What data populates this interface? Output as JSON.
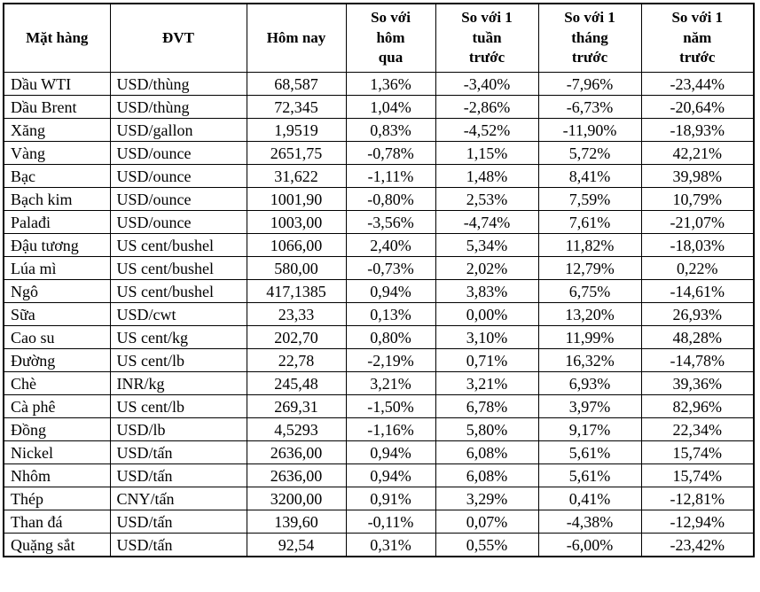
{
  "colors": {
    "border": "#000000",
    "background": "#ffffff",
    "text": "#000000"
  },
  "table": {
    "headers": [
      "Mặt hàng",
      "ĐVT",
      "Hôm nay",
      "So với\nhôm\nqua",
      "So với 1\ntuần\ntrước",
      "So với 1\ntháng\ntrước",
      "So với 1\nnăm\ntrước"
    ],
    "column_keys": [
      "commodity",
      "unit",
      "today",
      "vs-yesterday",
      "vs-week",
      "vs-month",
      "vs-year"
    ],
    "rows": [
      [
        "Dầu WTI",
        "USD/thùng",
        "68,587",
        "1,36%",
        "-3,40%",
        "-7,96%",
        "-23,44%"
      ],
      [
        "Dầu Brent",
        "USD/thùng",
        "72,345",
        "1,04%",
        "-2,86%",
        "-6,73%",
        "-20,64%"
      ],
      [
        "Xăng",
        "USD/gallon",
        "1,9519",
        "0,83%",
        "-4,52%",
        "-11,90%",
        "-18,93%"
      ],
      [
        "Vàng",
        "USD/ounce",
        "2651,75",
        "-0,78%",
        "1,15%",
        "5,72%",
        "42,21%"
      ],
      [
        "Bạc",
        "USD/ounce",
        "31,622",
        "-1,11%",
        "1,48%",
        "8,41%",
        "39,98%"
      ],
      [
        "Bạch kim",
        "USD/ounce",
        "1001,90",
        "-0,80%",
        "2,53%",
        "7,59%",
        "10,79%"
      ],
      [
        "Palađi",
        "USD/ounce",
        "1003,00",
        "-3,56%",
        "-4,74%",
        "7,61%",
        "-21,07%"
      ],
      [
        "Đậu tương",
        "US cent/bushel",
        "1066,00",
        "2,40%",
        "5,34%",
        "11,82%",
        "-18,03%"
      ],
      [
        "Lúa mì",
        "US cent/bushel",
        "580,00",
        "-0,73%",
        "2,02%",
        "12,79%",
        "0,22%"
      ],
      [
        "Ngô",
        "US cent/bushel",
        "417,1385",
        "0,94%",
        "3,83%",
        "6,75%",
        "-14,61%"
      ],
      [
        "Sữa",
        "USD/cwt",
        "23,33",
        "0,13%",
        "0,00%",
        "13,20%",
        "26,93%"
      ],
      [
        "Cao su",
        "US cent/kg",
        "202,70",
        "0,80%",
        "3,10%",
        "11,99%",
        "48,28%"
      ],
      [
        "Đường",
        "US cent/lb",
        "22,78",
        "-2,19%",
        "0,71%",
        "16,32%",
        "-14,78%"
      ],
      [
        "Chè",
        "INR/kg",
        "245,48",
        "3,21%",
        "3,21%",
        "6,93%",
        "39,36%"
      ],
      [
        "Cà phê",
        "US cent/lb",
        "269,31",
        "-1,50%",
        "6,78%",
        "3,97%",
        "82,96%"
      ],
      [
        "Đồng",
        "USD/lb",
        "4,5293",
        "-1,16%",
        "5,80%",
        "9,17%",
        "22,34%"
      ],
      [
        "Nickel",
        "USD/tấn",
        "2636,00",
        "0,94%",
        "6,08%",
        "5,61%",
        "15,74%"
      ],
      [
        "Nhôm",
        "USD/tấn",
        "2636,00",
        "0,94%",
        "6,08%",
        "5,61%",
        "15,74%"
      ],
      [
        "Thép",
        "CNY/tấn",
        "3200,00",
        "0,91%",
        "3,29%",
        "0,41%",
        "-12,81%"
      ],
      [
        "Than đá",
        "USD/tấn",
        "139,60",
        "-0,11%",
        "0,07%",
        "-4,38%",
        "-12,94%"
      ],
      [
        "Quặng sắt",
        "USD/tấn",
        "92,54",
        "0,31%",
        "0,55%",
        "-6,00%",
        "-23,42%"
      ]
    ]
  }
}
